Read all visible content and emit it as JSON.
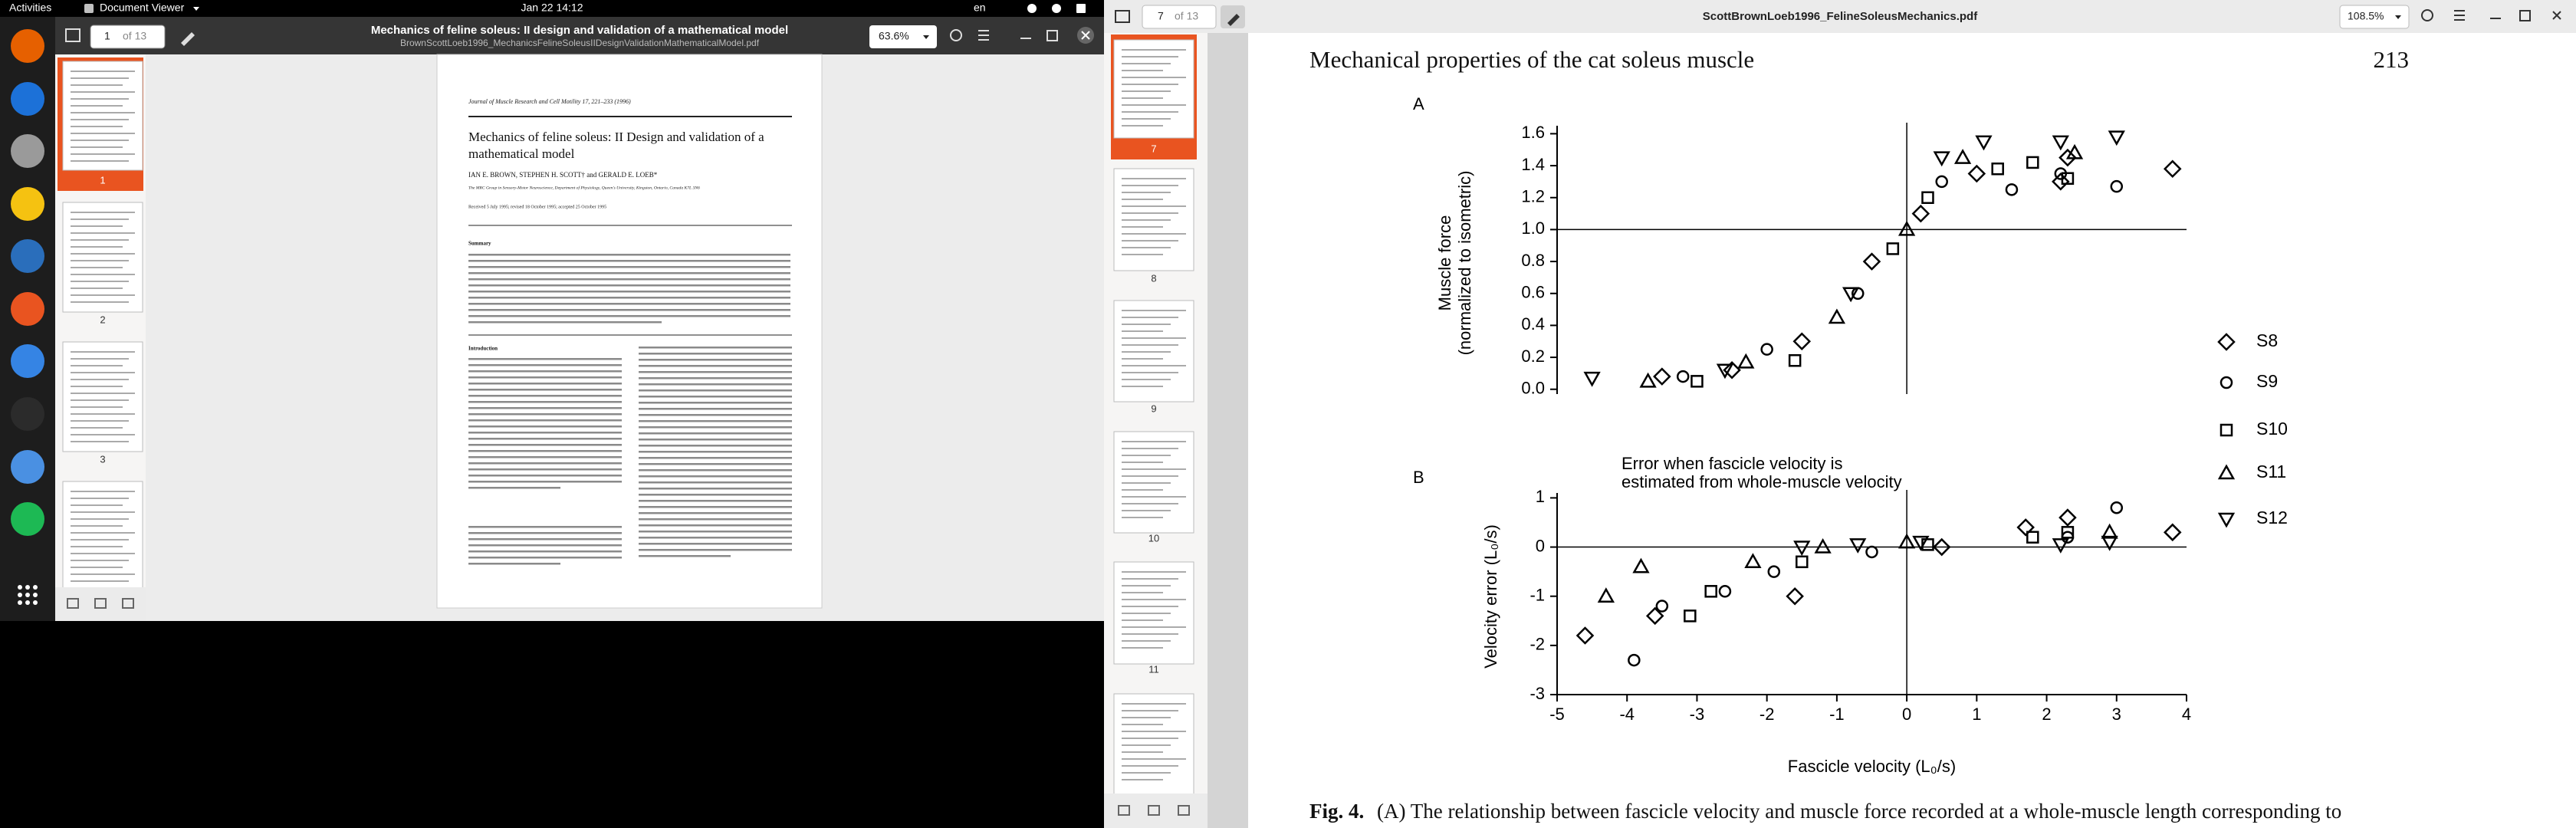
{
  "top_bar": {
    "activities": "Activities",
    "app_menu": "Document Viewer",
    "clock": "Jan 22  14:12",
    "input_source": "en"
  },
  "left_window": {
    "page_entry": "1",
    "page_count": "of 13",
    "title": "Mechanics of feline soleus: II design and validation of a mathematical model",
    "subtitle": "BrownScottLoeb1996_MechanicsFelineSoleusIIDesignValidationMathematicalModel.pdf",
    "zoom": "63.6%",
    "thumbnail_labels": [
      "1",
      "2",
      "3"
    ],
    "page": {
      "journal": "Journal of Muscle Research and Cell Motility 17, 221–233 (1996)",
      "title": [
        "Mechanics of feline soleus: II Design and validation of a",
        "mathematical model"
      ],
      "authors": "IAN E. BROWN, STEPHEN H. SCOTT† and GERALD E. LOEB*",
      "affiliation": "The MRC Group in Sensory-Motor Neuroscience, Department of Physiology, Queen's University, Kingston, Ontario, Canada K7L 3N6",
      "received": "Received 5 July 1995; revised 18 October 1995; accepted 25 October 1995",
      "summary_heading": "Summary",
      "intro_heading": "Introduction"
    }
  },
  "right_window": {
    "page_entry": "7",
    "page_count": "of 13",
    "title": "ScottBrownLoeb1996_FelineSoleusMechanics.pdf",
    "zoom": "108.5%",
    "thumbnail_labels": [
      "7",
      "8",
      "9",
      "10",
      "11"
    ],
    "page": {
      "running_head": "Mechanical properties of the cat soleus muscle",
      "page_number": "213",
      "caption_label": "Fig. 4.",
      "caption_text": "(A) The relationship between fascicle velocity and muscle force recorded at a whole-muscle length corresponding to",
      "figure": {
        "xlim": [
          -5,
          4
        ],
        "xticks": [
          -5,
          -4,
          -3,
          -2,
          -1,
          0,
          1,
          2,
          3,
          4
        ],
        "xlabel": "Fascicle velocity (L₀/s)",
        "reference_x": 0,
        "panel_a": {
          "label": "A",
          "ylabel": [
            "Muscle force",
            "(normalized to isometric)"
          ],
          "ylim": [
            -0.03,
            1.65
          ],
          "yticks": [
            {
              "value": 0,
              "label": "0.0"
            },
            {
              "value": 0.2,
              "label": "0.2"
            },
            {
              "value": 0.4,
              "label": "0.4"
            },
            {
              "value": 0.6,
              "label": "0.6"
            },
            {
              "value": 0.8,
              "label": "0.8"
            },
            {
              "value": 1,
              "label": "1.0"
            },
            {
              "value": 1.2,
              "label": "1.2"
            },
            {
              "value": 1.4,
              "label": "1.4"
            },
            {
              "value": 1.6,
              "label": "1.6"
            }
          ],
          "reference_y": 1
        },
        "panel_b": {
          "label": "B",
          "ylabel": "Velocity error (L₀/s)",
          "annotation": [
            "Error when fascicle velocity is",
            "estimated from whole-muscle velocity"
          ],
          "ylim": [
            -3,
            1.1
          ],
          "yticks": [
            -3,
            -2,
            -1,
            0,
            1
          ],
          "reference_y": 0
        },
        "series": [
          {
            "name": "S8",
            "marker": "diamond",
            "a": {
              "x": [
                -3.5,
                -2.5,
                -1.5,
                -0.5,
                0.2,
                1,
                2.2,
                2.3,
                3.8
              ],
              "values": [
                0.08,
                0.12,
                0.3,
                0.8,
                1.1,
                1.35,
                1.3,
                1.45,
                1.38
              ]
            },
            "b": {
              "x": [
                -4.6,
                -3.6,
                -1.6,
                0.5,
                1.7,
                2.3,
                3.8
              ],
              "values": [
                -1.8,
                -1.4,
                -1,
                0,
                0.4,
                0.6,
                0.3
              ]
            }
          },
          {
            "name": "S9",
            "marker": "circle",
            "a": {
              "x": [
                -3.2,
                -2,
                -0.7,
                0.5,
                1.5,
                2.2,
                3
              ],
              "values": [
                0.08,
                0.25,
                0.6,
                1.3,
                1.25,
                1.35,
                1.27
              ]
            },
            "b": {
              "x": [
                -3.9,
                -3.5,
                -2.6,
                -1.9,
                -0.5,
                2.3,
                3
              ],
              "values": [
                -2.3,
                -1.2,
                -0.9,
                -0.5,
                -0.1,
                0.2,
                0.8
              ]
            }
          },
          {
            "name": "S10",
            "marker": "square",
            "a": {
              "x": [
                -3,
                -1.6,
                -0.2,
                0.3,
                1.3,
                1.8,
                2.3
              ],
              "values": [
                0.05,
                0.18,
                0.88,
                1.2,
                1.38,
                1.42,
                1.32
              ]
            },
            "b": {
              "x": [
                -3.1,
                -2.8,
                -1.5,
                0.3,
                1.8,
                2.3
              ],
              "values": [
                -1.4,
                -0.9,
                -0.3,
                0.05,
                0.2,
                0.3
              ]
            }
          },
          {
            "name": "S11",
            "marker": "triangle",
            "a": {
              "x": [
                -3.7,
                -2.3,
                -1,
                0,
                0.8,
                2.4
              ],
              "values": [
                0.05,
                0.17,
                0.45,
                1,
                1.45,
                1.48
              ]
            },
            "b": {
              "x": [
                -4.3,
                -3.8,
                -2.2,
                -1.2,
                0,
                2.9
              ],
              "values": [
                -1,
                -0.4,
                -0.3,
                0,
                0.1,
                0.3
              ]
            }
          },
          {
            "name": "S12",
            "marker": "triangle-down",
            "a": {
              "x": [
                -4.5,
                -2.6,
                -0.8,
                0.5,
                1.1,
                2.2,
                3
              ],
              "values": [
                0.07,
                0.12,
                0.6,
                1.45,
                1.55,
                1.55,
                1.58
              ]
            },
            "b": {
              "x": [
                -1.5,
                -0.7,
                0.2,
                2.2,
                2.9
              ],
              "values": [
                0,
                0.05,
                0.1,
                0.05,
                0.1
              ]
            }
          }
        ]
      }
    }
  }
}
